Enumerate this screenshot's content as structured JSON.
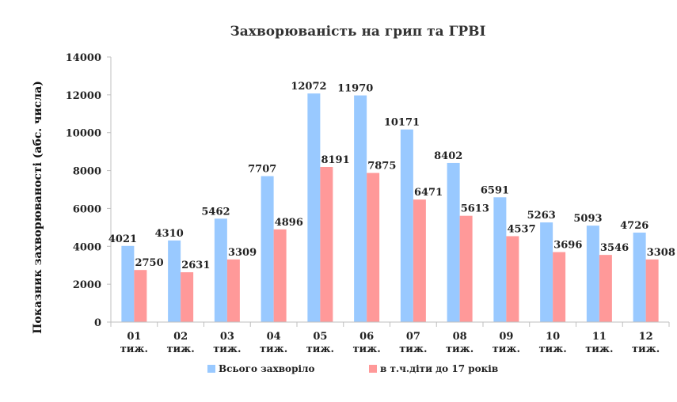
{
  "chart_data": {
    "type": "bar",
    "title": "Захворюваність на грип та ГРВІ",
    "xlabel": "",
    "ylabel": "Показник захворюваності (абс. числа)",
    "categories": [
      [
        "01",
        "тиж."
      ],
      [
        "02",
        "тиж."
      ],
      [
        "03",
        "тиж."
      ],
      [
        "04",
        "тиж."
      ],
      [
        "05",
        "тиж."
      ],
      [
        "06",
        "тиж."
      ],
      [
        "07",
        "тиж."
      ],
      [
        "08",
        "тиж."
      ],
      [
        "09",
        "тиж."
      ],
      [
        "10",
        "тиж."
      ],
      [
        "11",
        "тиж."
      ],
      [
        "12",
        "тиж."
      ]
    ],
    "ylim": [
      0,
      14000
    ],
    "yticks": [
      0,
      2000,
      4000,
      6000,
      8000,
      10000,
      12000,
      14000
    ],
    "grid": false,
    "legend_position": "bottom",
    "series": [
      {
        "name": "Всього захворіло",
        "color": "#99c9ff",
        "values": [
          4021,
          4310,
          5462,
          7707,
          12072,
          11970,
          10171,
          8402,
          6591,
          5263,
          5093,
          4726
        ]
      },
      {
        "name": "в т.ч.діти до 17 років",
        "color": "#ff9999",
        "values": [
          2750,
          2631,
          3309,
          4896,
          8191,
          7875,
          6471,
          5613,
          4537,
          3696,
          3546,
          3308
        ]
      }
    ]
  }
}
